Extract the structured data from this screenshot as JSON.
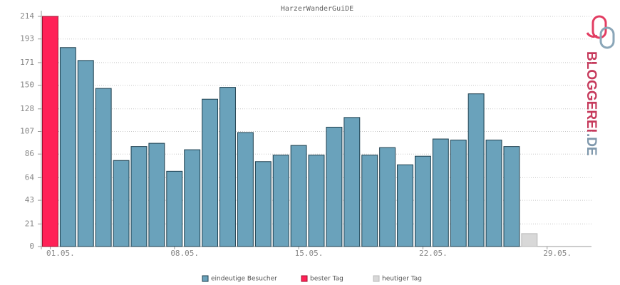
{
  "chart_data": {
    "type": "bar",
    "title": "HarzerWanderGuiDE",
    "categories": [
      "01.05.",
      null,
      null,
      null,
      null,
      null,
      null,
      "08.05.",
      null,
      null,
      null,
      null,
      null,
      null,
      "15.05.",
      null,
      null,
      null,
      null,
      null,
      null,
      "22.05.",
      null,
      null,
      null,
      null,
      null,
      null,
      "29.05.",
      null,
      null
    ],
    "series": [
      {
        "name": "eindeutige Besucher",
        "color": "#6aa2bb",
        "values": [
          null,
          185,
          173,
          147,
          80,
          93,
          96,
          70,
          90,
          137,
          148,
          106,
          79,
          85,
          94,
          85,
          111,
          120,
          85,
          92,
          76,
          84,
          100,
          99,
          142,
          99,
          93,
          null,
          null,
          null,
          null
        ]
      },
      {
        "name": "bester Tag",
        "color": "#ff2157",
        "values": [
          214,
          null,
          null,
          null,
          null,
          null,
          null,
          null,
          null,
          null,
          null,
          null,
          null,
          null,
          null,
          null,
          null,
          null,
          null,
          null,
          null,
          null,
          null,
          null,
          null,
          null,
          null,
          null,
          null,
          null,
          null
        ]
      },
      {
        "name": "heutiger Tag",
        "color": "#d8d8d8",
        "values": [
          null,
          null,
          null,
          null,
          null,
          null,
          null,
          null,
          null,
          null,
          null,
          null,
          null,
          null,
          null,
          null,
          null,
          null,
          null,
          null,
          null,
          null,
          null,
          null,
          null,
          null,
          null,
          12,
          null,
          null,
          null
        ]
      }
    ],
    "ylim": [
      0,
      214
    ],
    "yticks": [
      0,
      21,
      43,
      64,
      86,
      107,
      128,
      150,
      171,
      193,
      214
    ],
    "grid": true
  },
  "logo": {
    "text": "BLOGGEREI",
    "suffix": ".DE"
  }
}
